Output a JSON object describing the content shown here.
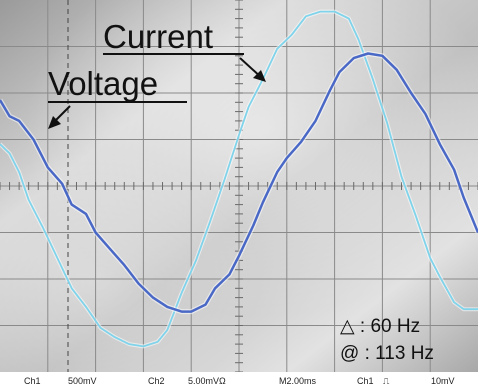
{
  "chart_data": {
    "type": "line",
    "x_units": "divisions",
    "y_units": "divisions",
    "xlim": [
      0,
      10
    ],
    "ylim": [
      -4,
      4
    ],
    "grid": true,
    "series": [
      {
        "name": "Voltage",
        "color": "#4a68c6",
        "x": [
          0.0,
          0.2,
          0.4,
          0.7,
          1.0,
          1.3,
          1.5,
          1.8,
          2.0,
          2.3,
          2.6,
          2.9,
          3.2,
          3.5,
          3.8,
          4.0,
          4.3,
          4.5,
          4.8,
          5.0,
          5.3,
          5.5,
          5.8,
          6.0,
          6.3,
          6.6,
          6.9,
          7.1,
          7.4,
          7.7,
          8.0,
          8.3,
          8.6,
          8.9,
          9.2,
          9.5,
          9.7,
          10.0
        ],
        "y": [
          1.85,
          1.5,
          1.4,
          1.0,
          0.4,
          0.05,
          -0.4,
          -0.6,
          -1.0,
          -1.35,
          -1.7,
          -2.1,
          -2.4,
          -2.6,
          -2.7,
          -2.7,
          -2.55,
          -2.2,
          -1.9,
          -1.5,
          -0.85,
          -0.35,
          0.3,
          0.6,
          0.95,
          1.4,
          2.05,
          2.45,
          2.75,
          2.85,
          2.8,
          2.5,
          2.0,
          1.55,
          0.9,
          0.35,
          -0.25,
          -1.0
        ]
      },
      {
        "name": "Current",
        "color": "#7fd3ea",
        "x": [
          0.0,
          0.2,
          0.4,
          0.6,
          0.9,
          1.2,
          1.5,
          1.8,
          2.1,
          2.4,
          2.7,
          3.0,
          3.3,
          3.5,
          3.8,
          4.1,
          4.4,
          4.7,
          5.0,
          5.2,
          5.5,
          5.8,
          6.1,
          6.4,
          6.7,
          7.0,
          7.3,
          7.5,
          7.8,
          8.1,
          8.4,
          8.7,
          9.0,
          9.2,
          9.5,
          9.7,
          10.0
        ],
        "y": [
          0.9,
          0.7,
          0.3,
          -0.3,
          -0.9,
          -1.55,
          -2.2,
          -2.6,
          -3.05,
          -3.25,
          -3.4,
          -3.45,
          -3.35,
          -3.1,
          -2.3,
          -1.6,
          -0.75,
          0.15,
          1.1,
          1.7,
          2.3,
          2.95,
          3.25,
          3.65,
          3.75,
          3.75,
          3.6,
          3.15,
          2.3,
          1.35,
          0.2,
          -0.65,
          -1.55,
          -1.95,
          -2.5,
          -2.65,
          -2.65
        ]
      }
    ],
    "annotations": {
      "current_label": "Current",
      "voltage_label": "Voltage",
      "freq_line_1": "△ : 60 Hz",
      "freq_line_2": "@ : 113 Hz"
    },
    "status_bar": {
      "ch1": "Ch1",
      "ch1_scale": "500mV",
      "ch2": "Ch2",
      "ch2_scale": "5.00mVΩ",
      "timebase": "M2.00ms",
      "trigger_source": "Ch1",
      "trigger_symbol": "⎍",
      "trigger_level": "10mV"
    }
  }
}
